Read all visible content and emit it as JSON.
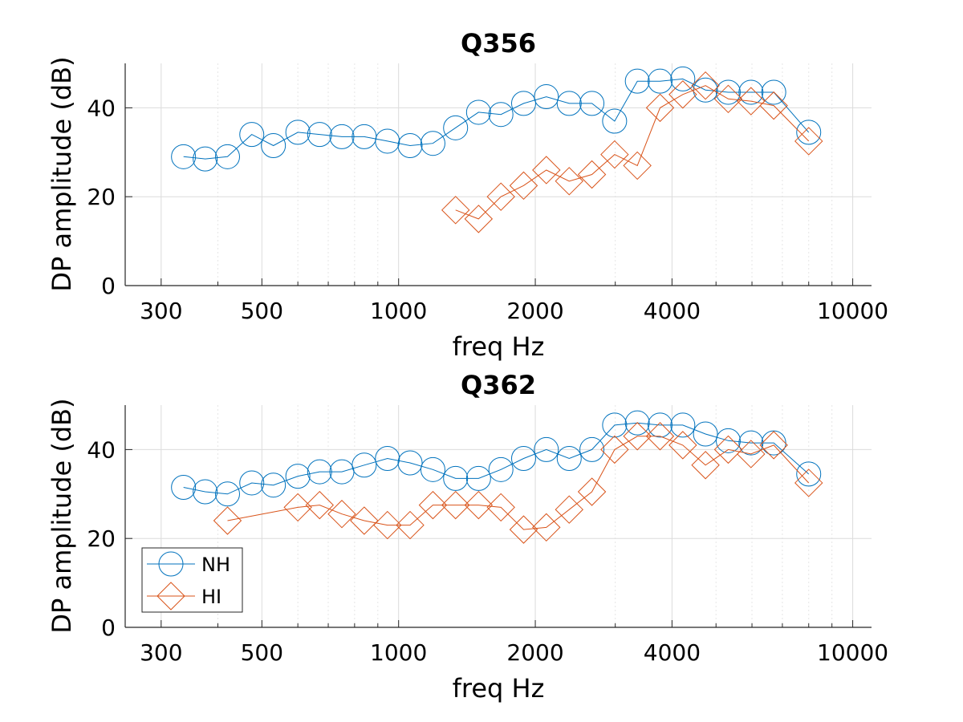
{
  "colors": {
    "NH": "#0072BD",
    "HI": "#D95319",
    "grid": "#d9d9d9"
  },
  "chart_data": [
    {
      "type": "line",
      "title": "Q356",
      "xlabel": "freq Hz",
      "ylabel": "DP amplitude (dB)",
      "xscale": "log",
      "xlim": [
        250,
        11000
      ],
      "ylim": [
        0,
        50
      ],
      "xticks": [
        300,
        500,
        1000,
        2000,
        4000,
        10000
      ],
      "xtick_labels": [
        "300",
        "500",
        "1000",
        "2000",
        "4000",
        "10000"
      ],
      "yticks": [
        0,
        20,
        40
      ],
      "ytick_labels": [
        "0",
        "20",
        "40"
      ],
      "grid": true,
      "series": [
        {
          "name": "NH",
          "marker": "circle",
          "x": [
            336,
            375,
            420,
            475,
            530,
            600,
            670,
            750,
            840,
            945,
            1060,
            1190,
            1335,
            1500,
            1680,
            1885,
            2115,
            2375,
            2665,
            2990,
            3355,
            3765,
            4225,
            4740,
            5320,
            5970,
            6700,
            8000
          ],
          "y": [
            29,
            28.5,
            29,
            34,
            31.5,
            34.5,
            34,
            33.5,
            33.5,
            32.5,
            31.5,
            32,
            35.5,
            39,
            38.5,
            41,
            42.5,
            41,
            41,
            37,
            46,
            46,
            46.5,
            44,
            43.5,
            43.5,
            43.5,
            34.5
          ]
        },
        {
          "name": "HI",
          "marker": "diamond",
          "x": [
            1335,
            1500,
            1680,
            1885,
            2115,
            2375,
            2665,
            2990,
            3355,
            3765,
            4225,
            4740,
            5320,
            5970,
            6700,
            8000
          ],
          "y": [
            17,
            15,
            20,
            22.5,
            26,
            23.5,
            25,
            29.5,
            27,
            40,
            43,
            45,
            42,
            41.5,
            40.5,
            32.5
          ]
        }
      ]
    },
    {
      "type": "line",
      "title": "Q362",
      "xlabel": "freq Hz",
      "ylabel": "DP amplitude (dB)",
      "xscale": "log",
      "xlim": [
        250,
        11000
      ],
      "ylim": [
        0,
        50
      ],
      "xticks": [
        300,
        500,
        1000,
        2000,
        4000,
        10000
      ],
      "xtick_labels": [
        "300",
        "500",
        "1000",
        "2000",
        "4000",
        "10000"
      ],
      "yticks": [
        0,
        20,
        40
      ],
      "ytick_labels": [
        "0",
        "20",
        "40"
      ],
      "grid": true,
      "legend": {
        "placement": "bottom-left",
        "entries": [
          "NH",
          "HI"
        ]
      },
      "series": [
        {
          "name": "NH",
          "marker": "circle",
          "x": [
            336,
            375,
            420,
            475,
            530,
            600,
            670,
            750,
            840,
            945,
            1060,
            1190,
            1335,
            1500,
            1680,
            1885,
            2115,
            2375,
            2665,
            2990,
            3355,
            3765,
            4225,
            4740,
            5320,
            5970,
            6700,
            8000
          ],
          "y": [
            31.5,
            30.5,
            30,
            32.5,
            32,
            34,
            35,
            35,
            36.5,
            38,
            37,
            35.5,
            33.5,
            33.5,
            35.5,
            38,
            40,
            38,
            40,
            45.5,
            46,
            45.5,
            45.5,
            43.5,
            42,
            41.5,
            41.5,
            34.5
          ]
        },
        {
          "name": "HI",
          "marker": "diamond",
          "x": [
            420,
            600,
            670,
            750,
            840,
            945,
            1060,
            1190,
            1335,
            1500,
            1680,
            1885,
            2115,
            2375,
            2665,
            2990,
            3355,
            3765,
            4225,
            4740,
            5320,
            5970,
            6700,
            8000
          ],
          "y": [
            24,
            27,
            27.5,
            25.5,
            24,
            23,
            23,
            27.5,
            27.5,
            27.5,
            27,
            22,
            22.5,
            26.5,
            30.5,
            40,
            43,
            43,
            41,
            36.5,
            40,
            39,
            41,
            32.5
          ]
        }
      ]
    }
  ]
}
